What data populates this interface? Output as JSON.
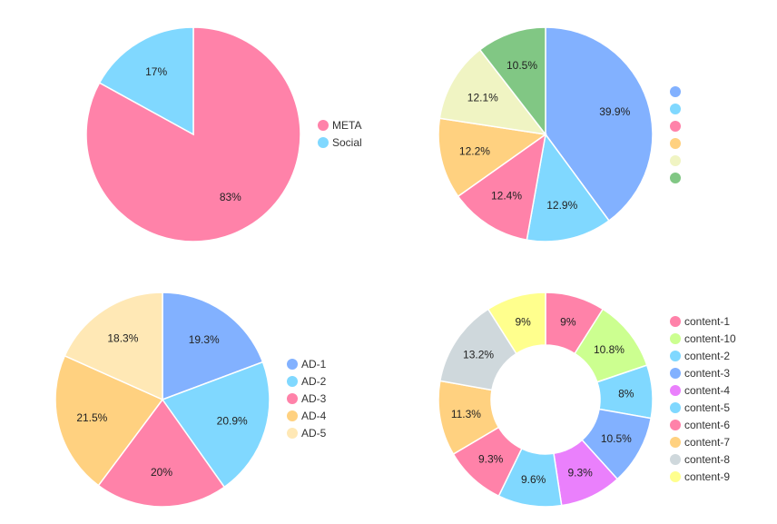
{
  "chart_data": [
    {
      "type": "pie",
      "series": [
        {
          "name": "META",
          "value": 83,
          "label": "83%",
          "color": "#ff82a9"
        },
        {
          "name": "Social",
          "value": 17,
          "label": "17%",
          "color": "#80d8ff"
        }
      ]
    },
    {
      "type": "pie",
      "series": [
        {
          "name": "",
          "value": 39.9,
          "label": "39.9%",
          "color": "#82b1ff"
        },
        {
          "name": "",
          "value": 12.9,
          "label": "12.9%",
          "color": "#80d8ff"
        },
        {
          "name": "",
          "value": 12.4,
          "label": "12.4%",
          "color": "#ff82a9"
        },
        {
          "name": "",
          "value": 12.2,
          "label": "12.2%",
          "color": "#ffd180"
        },
        {
          "name": "",
          "value": 12.1,
          "label": "12.1%",
          "color": "#f0f4c3"
        },
        {
          "name": "",
          "value": 10.5,
          "label": "10.5%",
          "color": "#81c784"
        }
      ]
    },
    {
      "type": "pie",
      "series": [
        {
          "name": "AD-1",
          "value": 19.3,
          "label": "19.3%",
          "color": "#82b1ff"
        },
        {
          "name": "AD-2",
          "value": 20.9,
          "label": "20.9%",
          "color": "#80d8ff"
        },
        {
          "name": "AD-3",
          "value": 20,
          "label": "20%",
          "color": "#ff82a9"
        },
        {
          "name": "AD-4",
          "value": 21.5,
          "label": "21.5%",
          "color": "#ffd180"
        },
        {
          "name": "AD-5",
          "value": 18.3,
          "label": "18.3%",
          "color": "#ffe8b5"
        }
      ]
    },
    {
      "type": "donut",
      "series": [
        {
          "name": "content-1",
          "value": 9,
          "label": "9%",
          "color": "#ff82a9"
        },
        {
          "name": "content-10",
          "value": 10.8,
          "label": "10.8%",
          "color": "#ccff90"
        },
        {
          "name": "content-2",
          "value": 8,
          "label": "8%",
          "color": "#80d8ff"
        },
        {
          "name": "content-3",
          "value": 10.5,
          "label": "10.5%",
          "color": "#82b1ff"
        },
        {
          "name": "content-4",
          "value": 9.3,
          "label": "9.3%",
          "color": "#ea80fc"
        },
        {
          "name": "content-5",
          "value": 9.6,
          "label": "9.6%",
          "color": "#80d8ff"
        },
        {
          "name": "content-6",
          "value": 9.3,
          "label": "9.3%",
          "color": "#ff82a9"
        },
        {
          "name": "content-7",
          "value": 11.3,
          "label": "11.3%",
          "color": "#ffd180"
        },
        {
          "name": "content-8",
          "value": 13.2,
          "label": "13.2%",
          "color": "#cfd8dc"
        },
        {
          "name": "content-9",
          "value": 9,
          "label": "9%",
          "color": "#ffff8d"
        }
      ]
    }
  ]
}
